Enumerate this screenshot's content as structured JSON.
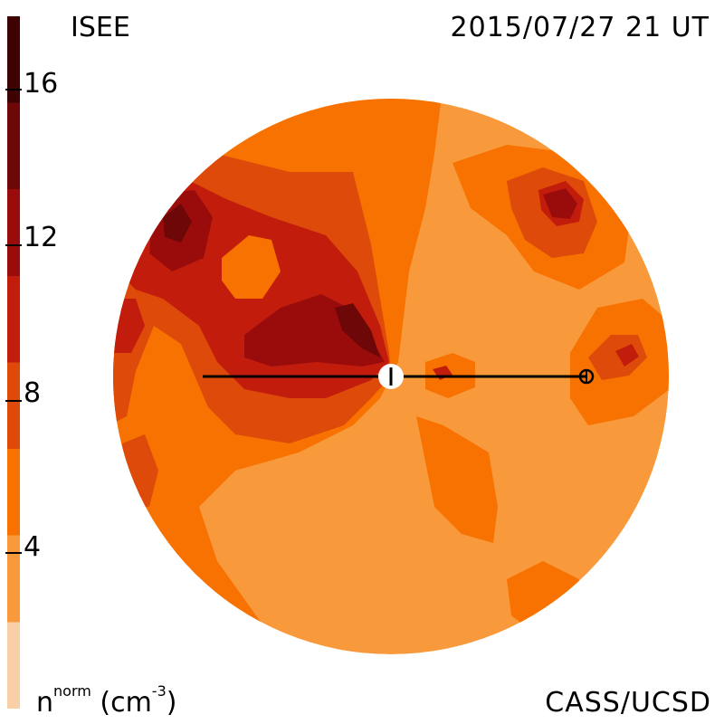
{
  "header": {
    "title_left": "ISEE",
    "title_right": "2015/07/27 21 UT"
  },
  "footer": {
    "units_base": "n",
    "units_sup": "norm",
    "units_open": " (cm",
    "units_exp": "-3",
    "units_close": ")",
    "credit": "CASS/UCSD"
  },
  "colorbar": {
    "tick_labels": [
      "16",
      "12",
      "8",
      "4"
    ],
    "tick_values": [
      16,
      12,
      8,
      4
    ],
    "range": [
      0,
      18
    ],
    "colors": [
      "#f9cfa6",
      "#f89a3c",
      "#f77200",
      "#de4a0a",
      "#c21d0c",
      "#9a0c0c",
      "#6e0707",
      "#3d0303"
    ]
  },
  "palette": {
    "level1": "#f89a3c",
    "level2": "#f77200",
    "level3": "#de4a0a",
    "level4": "#c21d0c",
    "level5": "#9a0c0c",
    "level6": "#6e0707"
  }
}
